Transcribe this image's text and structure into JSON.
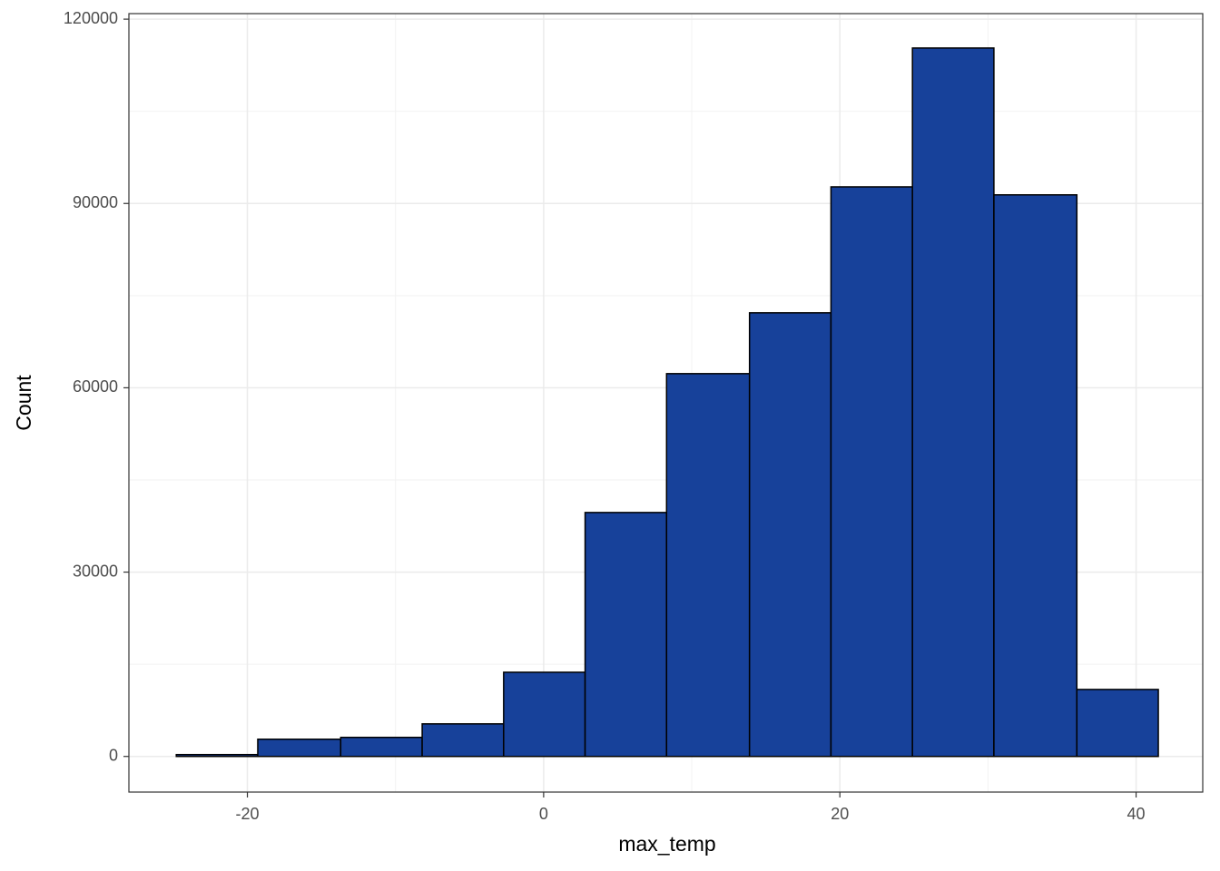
{
  "chart_data": {
    "type": "histogram",
    "xlabel": "max_temp",
    "ylabel": "Count",
    "bins": [
      -24.8,
      -19.3,
      -13.7,
      -8.2,
      -2.7,
      2.8,
      8.3,
      13.9,
      19.4,
      24.9,
      30.4,
      36.0,
      41.5
    ],
    "values": [
      300,
      2800,
      3100,
      5300,
      13700,
      39700,
      62300,
      72200,
      92700,
      115300,
      91400,
      10900
    ],
    "color": "#17419a",
    "edgecolor": "#000000",
    "xlim": [
      -28.0,
      44.5
    ],
    "ylim": [
      -5800,
      120900
    ],
    "xticks": [
      -20,
      0,
      20,
      40
    ],
    "yticks": [
      0,
      30000,
      60000,
      90000,
      120000
    ],
    "grid": true
  }
}
